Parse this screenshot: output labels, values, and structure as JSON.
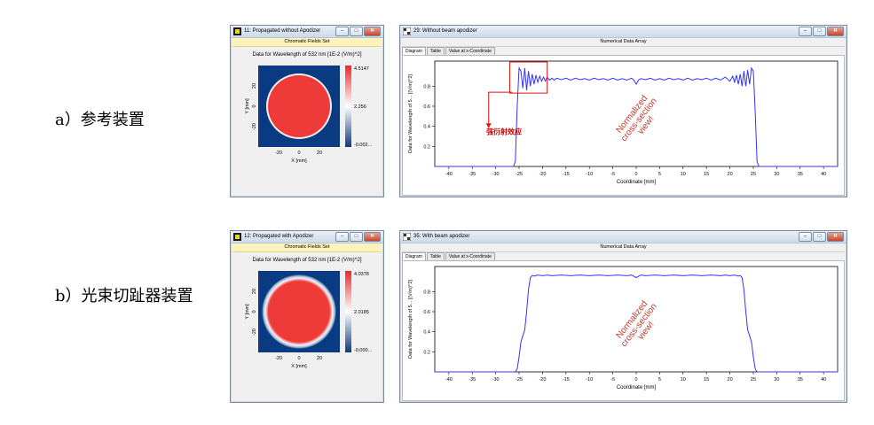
{
  "rows": [
    {
      "label": "a）参考装置"
    },
    {
      "label": "b）光束切趾器装置"
    }
  ],
  "field_windows": [
    {
      "title": "11: Propagated without Apodizer",
      "subtitle": "Chromatic Fields Set",
      "caption": "Data for Wavelength of 532 nm  [1E-2 (V/m)^2]",
      "colorbar": {
        "max": "4.5147",
        "mid": "2.256",
        "min": "-0.002..."
      },
      "xlabel": "X [mm]",
      "ylabel": "Y [mm]",
      "x_ticks": [
        "-20",
        "0",
        "20"
      ],
      "y_ticks": [
        "20",
        "0",
        "-20"
      ],
      "disk": "sharp"
    },
    {
      "title": "12: Propagated with Apodizer",
      "subtitle": "Chromatic Fields Set",
      "caption": "Data for Wavelength of 532 nm  [1E-2 (V/m)^2]",
      "colorbar": {
        "max": "4.0378",
        "mid": "2.0185",
        "min": "-0.000..."
      },
      "xlabel": "X [mm]",
      "ylabel": "Y [mm]",
      "x_ticks": [
        "-20",
        "0",
        "20"
      ],
      "y_ticks": [
        "20",
        "0",
        "-20"
      ],
      "disk": "soft"
    }
  ],
  "chart_windows": [
    {
      "title": "29: Without beam apodizer",
      "subtitle": "Numerical Data Array",
      "tabs": [
        "Diagram",
        "Table",
        "Value at x-Coordinate"
      ],
      "watermark": "Normalized\ncross-section\nview!",
      "annotation": "强衍射效应"
    },
    {
      "title": "35: With beam apodizer",
      "subtitle": "Numerical Data Array",
      "tabs": [
        "Diagram",
        "Table",
        "Value at x-Coordinate"
      ],
      "watermark": "Normalized\ncross-section\nview!",
      "annotation": ""
    }
  ],
  "chart_data": [
    {
      "type": "line",
      "title": "",
      "xlabel": "Coordinate [mm]",
      "ylabel": "Data for Wavelength of 5... [(V/m)^2]",
      "xlim": [
        -43,
        43
      ],
      "ylim": [
        0,
        1.05
      ],
      "x_ticks": [
        -40,
        -35,
        -30,
        -25,
        -20,
        -15,
        -10,
        -5,
        0,
        5,
        10,
        15,
        20,
        25,
        30,
        35,
        40
      ],
      "y_ticks": [
        0.2,
        0.4,
        0.6,
        0.8
      ],
      "grid": false,
      "series": [
        {
          "color": "#3333ff",
          "x": [
            -43,
            -26.2,
            -25.8,
            -25.4,
            -25.0,
            -24.6,
            -24.2,
            -23.8,
            -23.4,
            -23.0,
            -22.6,
            -22.2,
            -21.8,
            -21.4,
            -21.0,
            -20.6,
            -20.2,
            -19.8,
            -19.4,
            -19.0,
            -18.5,
            -18.0,
            -17.5,
            -17.0,
            -16.0,
            -15.0,
            -14.0,
            -13.0,
            -12.0,
            -11.0,
            -10.0,
            -9.0,
            -8.0,
            -7.0,
            -6.0,
            -5.0,
            -4.0,
            -3.0,
            -2.0,
            -1.0,
            -0.5,
            0,
            0.5,
            1.0,
            2.0,
            3.0,
            4.0,
            5.0,
            6.0,
            7.0,
            8.0,
            9.0,
            10.0,
            11.0,
            12.0,
            13.0,
            14.0,
            15.0,
            16.0,
            17.0,
            18.0,
            19.0,
            20.0,
            20.6,
            21.0,
            21.4,
            21.8,
            22.2,
            22.6,
            23.0,
            23.4,
            23.8,
            24.2,
            24.6,
            25.0,
            25.4,
            25.8,
            26.2,
            43
          ],
          "y": [
            0,
            0,
            0.05,
            0.6,
            0.98,
            0.95,
            0.78,
            0.98,
            0.76,
            0.95,
            0.8,
            0.92,
            0.82,
            0.91,
            0.84,
            0.9,
            0.85,
            0.89,
            0.85,
            0.89,
            0.86,
            0.88,
            0.86,
            0.88,
            0.865,
            0.88,
            0.86,
            0.88,
            0.865,
            0.875,
            0.86,
            0.88,
            0.865,
            0.875,
            0.86,
            0.88,
            0.86,
            0.875,
            0.86,
            0.88,
            0.86,
            0.82,
            0.86,
            0.875,
            0.865,
            0.88,
            0.86,
            0.875,
            0.86,
            0.88,
            0.865,
            0.875,
            0.86,
            0.88,
            0.86,
            0.875,
            0.865,
            0.88,
            0.86,
            0.88,
            0.86,
            0.89,
            0.85,
            0.9,
            0.84,
            0.91,
            0.82,
            0.92,
            0.8,
            0.95,
            0.8,
            0.96,
            0.82,
            0.98,
            0.95,
            0.55,
            0.05,
            0,
            0
          ]
        }
      ]
    },
    {
      "type": "line",
      "title": "",
      "xlabel": "Coordinate [mm]",
      "ylabel": "Data for Wavelength of 5... [(V/m)^2]",
      "xlim": [
        -43,
        43
      ],
      "ylim": [
        0,
        1.05
      ],
      "x_ticks": [
        -40,
        -35,
        -30,
        -25,
        -20,
        -15,
        -10,
        -5,
        0,
        5,
        10,
        15,
        20,
        25,
        30,
        35,
        40
      ],
      "y_ticks": [
        0.2,
        0.4,
        0.6,
        0.8
      ],
      "grid": false,
      "series": [
        {
          "color": "#3333ff",
          "x": [
            -43,
            -25.8,
            -25.4,
            -25.0,
            -24.6,
            -24.2,
            -23.8,
            -23.4,
            -23.0,
            -22.6,
            -22.2,
            -21.8,
            -21.0,
            -20.0,
            -19.0,
            -18.0,
            -16.0,
            -14.0,
            -12.0,
            -10.0,
            -8.0,
            -6.0,
            -4.0,
            -2.0,
            -1.0,
            0,
            1.0,
            2.0,
            4.0,
            6.0,
            8.0,
            10.0,
            12.0,
            14.0,
            16.0,
            18.0,
            19.0,
            20.0,
            21.0,
            21.8,
            22.2,
            22.6,
            23.0,
            23.4,
            23.8,
            24.2,
            24.6,
            25.0,
            25.4,
            25.8,
            43
          ],
          "y": [
            0,
            0,
            0.03,
            0.15,
            0.3,
            0.36,
            0.42,
            0.6,
            0.82,
            0.94,
            0.96,
            0.955,
            0.965,
            0.958,
            0.965,
            0.958,
            0.965,
            0.958,
            0.965,
            0.958,
            0.965,
            0.958,
            0.965,
            0.958,
            0.965,
            0.94,
            0.965,
            0.958,
            0.965,
            0.958,
            0.965,
            0.958,
            0.965,
            0.958,
            0.965,
            0.958,
            0.965,
            0.958,
            0.965,
            0.955,
            0.96,
            0.94,
            0.82,
            0.6,
            0.42,
            0.36,
            0.3,
            0.15,
            0.03,
            0,
            0
          ]
        }
      ]
    }
  ]
}
